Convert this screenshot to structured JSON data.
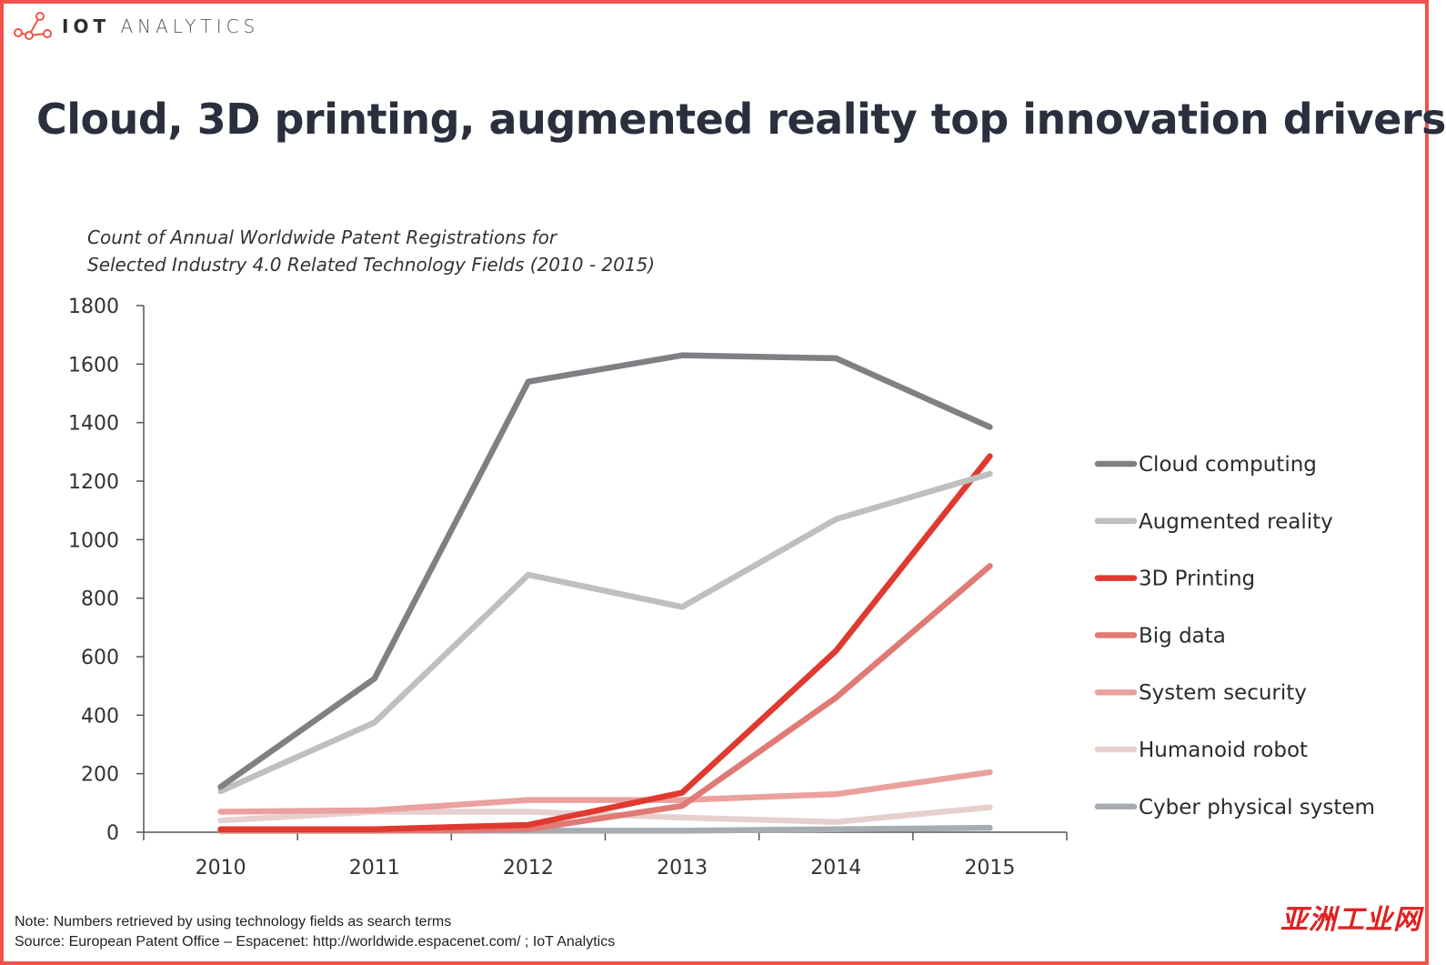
{
  "brand": {
    "name_bold": "IOT",
    "name_light": "ANALYTICS"
  },
  "title": "Cloud, 3D printing, augmented reality top innovation drivers",
  "footer": {
    "note": "Note: Numbers retrieved by using technology fields as search terms",
    "source": "Source: European Patent Office – Espacenet: http://worldwide.espacenet.com/ ; IoT Analytics"
  },
  "watermark": "亚洲工业网",
  "colors": {
    "frame": "#f0524a",
    "axis": "#555555"
  },
  "chart_data": {
    "type": "line",
    "title_lines": [
      "Count of Annual Worldwide Patent Registrations for",
      "Selected Industry 4.0 Related Technology Fields (2010 - 2015)"
    ],
    "categories": [
      "2010",
      "2011",
      "2012",
      "2013",
      "2014",
      "2015"
    ],
    "ylim": [
      0,
      1800
    ],
    "yticks": [
      0,
      200,
      400,
      600,
      800,
      1000,
      1200,
      1400,
      1600,
      1800
    ],
    "grid": false,
    "legend_position": "right",
    "series": [
      {
        "name": "Cloud computing",
        "color": "#808084",
        "values": [
          155,
          525,
          1540,
          1630,
          1620,
          1385
        ]
      },
      {
        "name": "Augmented reality",
        "color": "#bfbfbf",
        "values": [
          140,
          375,
          880,
          770,
          1070,
          1225
        ]
      },
      {
        "name": "3D Printing",
        "color": "#e03a30",
        "values": [
          10,
          10,
          25,
          135,
          620,
          1285
        ]
      },
      {
        "name": "Big data",
        "color": "#e07a75",
        "values": [
          5,
          5,
          10,
          90,
          460,
          910
        ]
      },
      {
        "name": "System security",
        "color": "#eaa19d",
        "values": [
          70,
          75,
          110,
          110,
          130,
          205
        ]
      },
      {
        "name": "Humanoid robot",
        "color": "#e6d0cf",
        "values": [
          40,
          70,
          70,
          50,
          35,
          85
        ]
      },
      {
        "name": "Cyber physical system",
        "color": "#a7abb3",
        "values": [
          5,
          5,
          5,
          5,
          10,
          15
        ]
      }
    ]
  }
}
